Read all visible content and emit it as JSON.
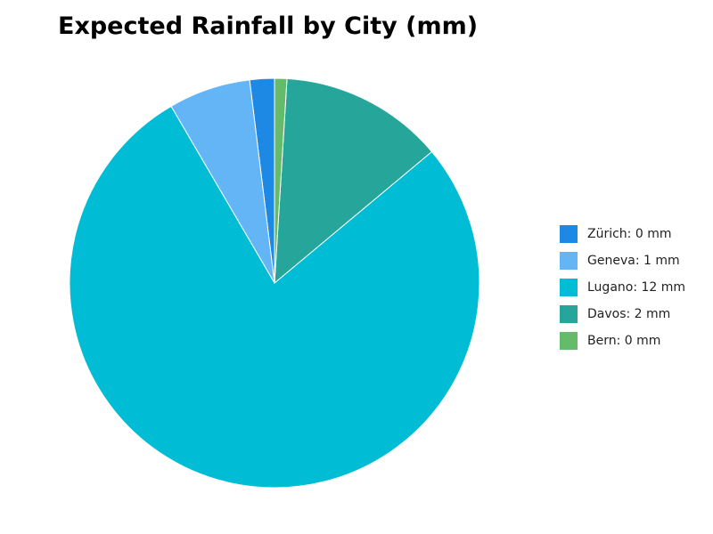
{
  "chart_data": {
    "type": "pie",
    "title": "Expected Rainfall by City (mm)",
    "categories": [
      "Zürich",
      "Geneva",
      "Lugano",
      "Davos",
      "Bern"
    ],
    "values": [
      0.3,
      1,
      12,
      2,
      0.15
    ],
    "legend_labels": [
      "Zürich: 0 mm",
      "Geneva: 1 mm",
      "Lugano: 12 mm",
      "Davos: 2 mm",
      "Bern: 0 mm"
    ],
    "colors": [
      "#1E88E5",
      "#64B5F6",
      "#00BCD4",
      "#26A69A",
      "#66BB6A"
    ],
    "start_angle": "top",
    "direction": "counterclockwise",
    "legend_position": "right"
  }
}
